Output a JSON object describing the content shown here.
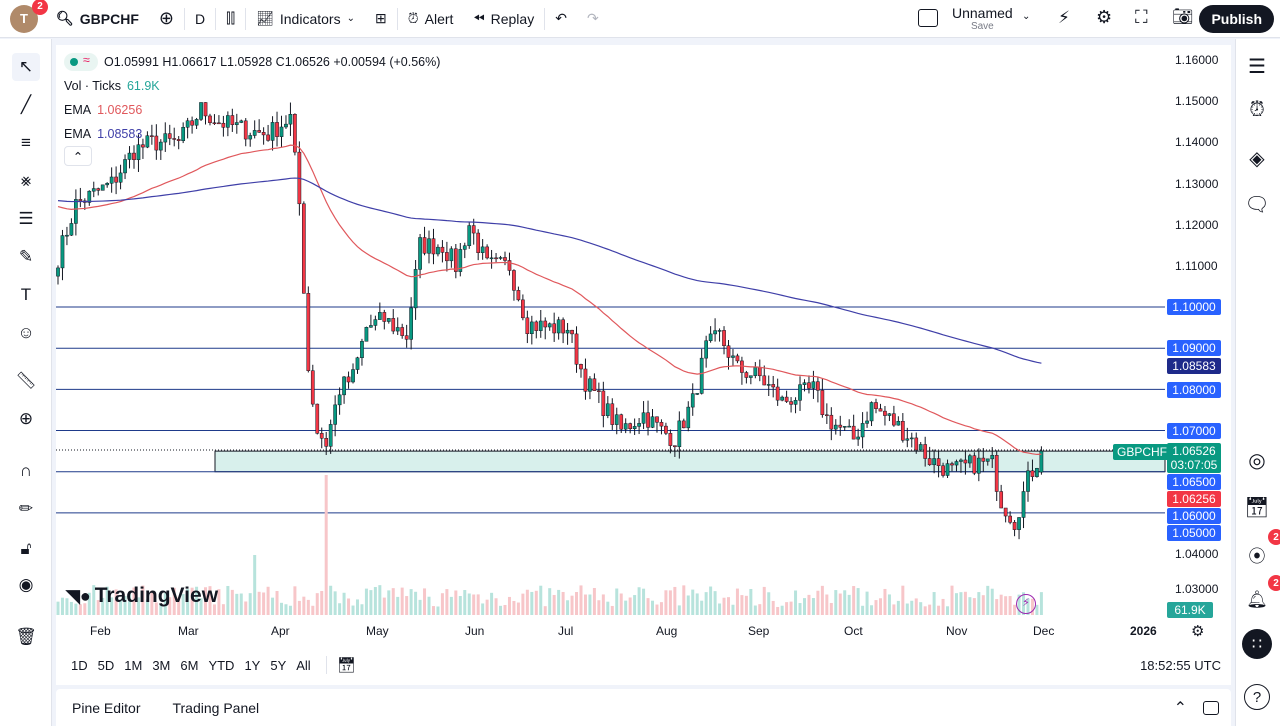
{
  "topbar": {
    "avatar_letter": "T",
    "avatar_badge": "2",
    "symbol": "GBPCHF",
    "interval": "D",
    "indicators": "Indicators",
    "alert": "Alert",
    "replay": "Replay",
    "layout_name": "Unnamed",
    "layout_save": "Save",
    "publish": "Publish"
  },
  "legend": {
    "ohlc": "O1.05991 H1.06617 L1.05928 C1.06526 +0.00594 (+0.56%)",
    "vol_label": "Vol · Ticks",
    "vol_value": "61.9K",
    "ema1_label": "EMA",
    "ema1_value": "1.06256",
    "ema2_label": "EMA",
    "ema2_value": "1.08583"
  },
  "colors": {
    "up": "#089981",
    "down": "#f23645",
    "ema_fast": "#e0585c",
    "ema_slow": "#3f3fa8",
    "hline": "#1e3a8a",
    "zone": "#d8f0ec",
    "label_blue": "#2962ff",
    "label_green": "#089981",
    "label_red": "#f23645"
  },
  "price_axis": {
    "ticks": [
      "1.16000",
      "1.15000",
      "1.14000",
      "1.13000",
      "1.12000",
      "1.11000",
      "1.04000",
      "1.03000"
    ],
    "labels": {
      "l110": "1.10000",
      "l109": "1.09000",
      "ema_slow": "1.08583",
      "l108": "1.08000",
      "l107": "1.07000",
      "symbol": "GBPCHF",
      "price": "1.06526",
      "countdown": "03:07:05",
      "l1065": "1.06500",
      "ema_fast": "1.06256",
      "l106": "1.06000",
      "l105": "1.05000",
      "vol": "61.9K"
    }
  },
  "time_axis": {
    "months": [
      "Feb",
      "Mar",
      "Apr",
      "May",
      "Jun",
      "Jul",
      "Aug",
      "Sep",
      "Oct",
      "Nov",
      "Dec",
      "2026"
    ]
  },
  "range_bar": {
    "ranges": [
      "1D",
      "5D",
      "1M",
      "3M",
      "6M",
      "YTD",
      "1Y",
      "5Y",
      "All"
    ],
    "clock": "18:52:55 UTC"
  },
  "bottom_panel": {
    "tabs": [
      "Pine Editor",
      "Trading Panel"
    ]
  },
  "watermark": "TradingView",
  "right_badges": {
    "ideas": "2",
    "alerts": "2"
  },
  "chart_data": {
    "type": "candlestick",
    "y_range": [
      1.03,
      1.16
    ],
    "horizontal_levels": [
      1.1,
      1.09,
      1.08,
      1.07,
      1.06,
      1.05
    ],
    "zone": [
      1.06,
      1.065
    ],
    "last_close": 1.06526,
    "price_path": [
      [
        0,
        1.112
      ],
      [
        4,
        1.125
      ],
      [
        12,
        1.13
      ],
      [
        17,
        1.138
      ],
      [
        21,
        1.14
      ],
      [
        27,
        1.14
      ],
      [
        32,
        1.148
      ],
      [
        36,
        1.145
      ],
      [
        42,
        1.143
      ],
      [
        47,
        1.142
      ],
      [
        52,
        1.146
      ],
      [
        54,
        1.125
      ],
      [
        56,
        1.085
      ],
      [
        58,
        1.07
      ],
      [
        60,
        1.067
      ],
      [
        63,
        1.08
      ],
      [
        66,
        1.083
      ],
      [
        69,
        1.095
      ],
      [
        73,
        1.097
      ],
      [
        78,
        1.093
      ],
      [
        81,
        1.115
      ],
      [
        86,
        1.115
      ],
      [
        89,
        1.11
      ],
      [
        92,
        1.12
      ],
      [
        96,
        1.11
      ],
      [
        101,
        1.11
      ],
      [
        105,
        1.096
      ],
      [
        110,
        1.095
      ],
      [
        114,
        1.095
      ],
      [
        116,
        1.088
      ],
      [
        118,
        1.082
      ],
      [
        124,
        1.073
      ],
      [
        126,
        1.07
      ],
      [
        131,
        1.074
      ],
      [
        135,
        1.07
      ],
      [
        138,
        1.068
      ],
      [
        142,
        1.077
      ],
      [
        145,
        1.09
      ],
      [
        148,
        1.093
      ],
      [
        152,
        1.085
      ],
      [
        157,
        1.083
      ],
      [
        162,
        1.077
      ],
      [
        169,
        1.08
      ],
      [
        172,
        1.073
      ],
      [
        178,
        1.068
      ],
      [
        182,
        1.076
      ],
      [
        187,
        1.072
      ],
      [
        191,
        1.068
      ],
      [
        195,
        1.063
      ],
      [
        200,
        1.06
      ],
      [
        205,
        1.062
      ],
      [
        209,
        1.062
      ],
      [
        211,
        1.053
      ],
      [
        214,
        1.048
      ],
      [
        217,
        1.058
      ],
      [
        220,
        1.065
      ]
    ]
  }
}
